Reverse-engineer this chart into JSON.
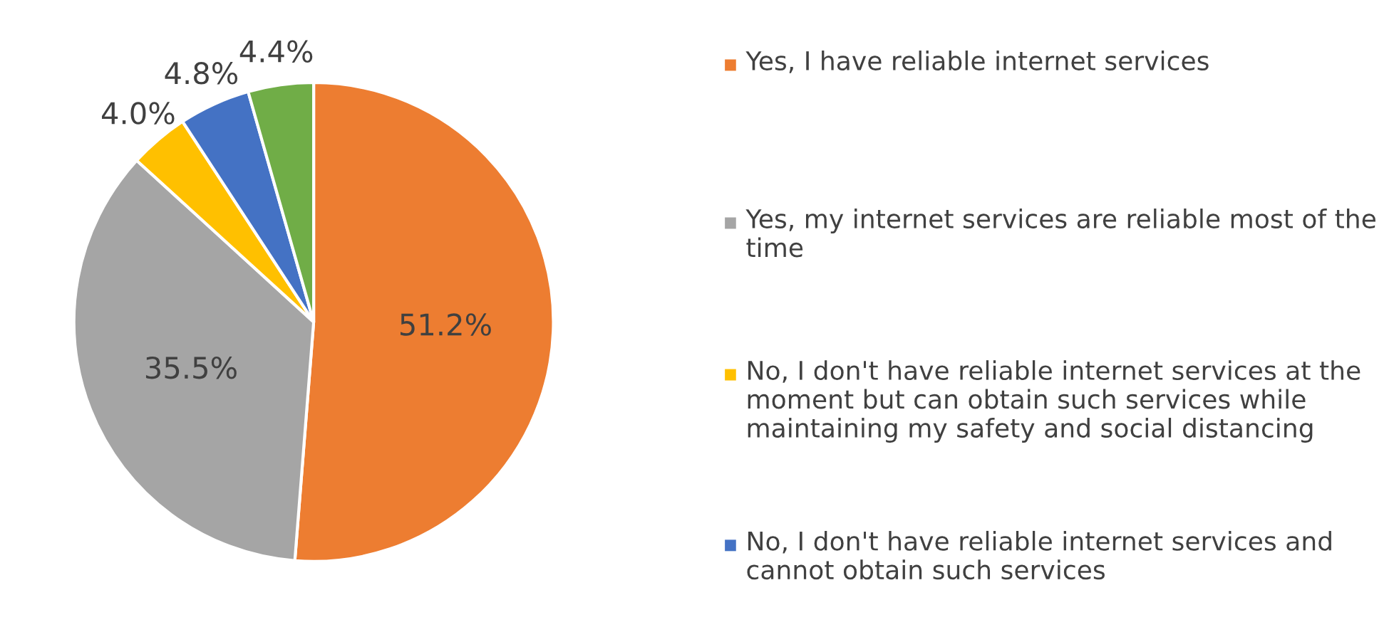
{
  "chart_data": {
    "type": "pie",
    "categories": [
      "Yes, I have reliable internet services",
      "Yes, my internet services are reliable most of the time",
      "No, I don't have reliable internet services at the moment but can obtain such services while maintaining my safety and social distancing",
      "No, I don't have reliable internet services and cannot obtain such services",
      null
    ],
    "values": [
      51.2,
      35.5,
      4.0,
      4.8,
      4.4
    ],
    "value_labels": [
      "51.2%",
      "35.5%",
      "4.0%",
      "4.8%",
      "4.4%"
    ],
    "colors": [
      "#ed7d31",
      "#a5a5a5",
      "#ffc000",
      "#4472c4",
      "#70ad47"
    ],
    "legend": "right"
  }
}
